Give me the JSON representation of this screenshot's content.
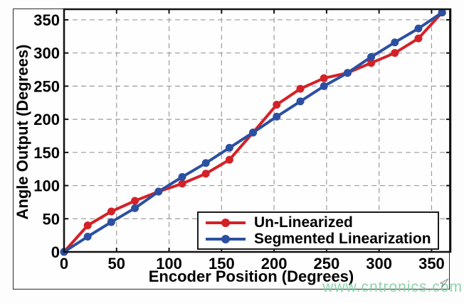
{
  "figure": {
    "watermark": "www.cntronics.com"
  },
  "colors": {
    "red_series": "#d42127",
    "blue_series": "#2b50a1",
    "grid": "#9c9c9c",
    "axis": "#111111",
    "watermark_green": "#84cfa6"
  },
  "chart_data": {
    "type": "line",
    "title": "",
    "xlabel": "Encoder Position (Degrees)",
    "ylabel": "Angle Output (Degrees)",
    "xlim": [
      0,
      368
    ],
    "ylim": [
      0,
      366
    ],
    "xticks": [
      0,
      50,
      100,
      150,
      200,
      250,
      300,
      350
    ],
    "yticks": [
      0,
      50,
      100,
      150,
      200,
      250,
      300,
      350
    ],
    "grid": true,
    "legend_position": "lower-right-inside",
    "x": [
      0,
      22.5,
      45,
      67.5,
      90,
      112.5,
      135,
      157.5,
      180,
      202.5,
      225,
      247.5,
      270,
      292.5,
      315,
      337.5,
      360
    ],
    "series": [
      {
        "name": "Un-Linearized",
        "color": "#d42127",
        "values": [
          0,
          40,
          61,
          77,
          91,
          103,
          118,
          139,
          180,
          222,
          246,
          262,
          270,
          285,
          300,
          322,
          361
        ]
      },
      {
        "name": "Segmented Linearization",
        "color": "#2b50a1",
        "values": [
          0,
          23,
          45,
          66,
          91,
          113,
          134,
          157,
          180,
          204,
          227,
          250,
          270,
          294,
          316,
          337,
          361
        ]
      }
    ]
  }
}
